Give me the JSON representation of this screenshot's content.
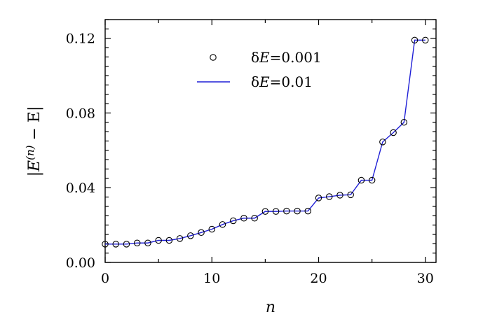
{
  "chart_data": {
    "type": "line",
    "xlabel": "n",
    "ylabel": "|E^{(n)} − E|",
    "ylabel_parts": {
      "left": "|E",
      "sup": "(n)",
      "right": " − E|"
    },
    "xlim": [
      0,
      31
    ],
    "ylim": [
      0,
      0.13
    ],
    "xticks": [
      0,
      10,
      20,
      30
    ],
    "xtick_labels": [
      "0",
      "10",
      "20",
      "30"
    ],
    "yticks": [
      0,
      0.04,
      0.08,
      0.12
    ],
    "ytick_labels": [
      "0.00",
      "0.04",
      "0.08",
      "0.12"
    ],
    "grid": false,
    "legend_position": "top-center",
    "x": [
      0,
      1,
      2,
      3,
      4,
      5,
      6,
      7,
      8,
      9,
      10,
      11,
      12,
      13,
      14,
      15,
      16,
      17,
      18,
      19,
      20,
      21,
      22,
      23,
      24,
      25,
      26,
      27,
      28,
      29,
      30
    ],
    "series": [
      {
        "name": "δE=0.001",
        "legend_label": {
          "prefix": "δ",
          "var": "E",
          "suffix": "=0.001"
        },
        "style": "markers",
        "color": "#000000",
        "values": [
          0.0098,
          0.0098,
          0.0098,
          0.0104,
          0.0104,
          0.0118,
          0.0118,
          0.0128,
          0.0143,
          0.016,
          0.0178,
          0.0203,
          0.0223,
          0.0237,
          0.0237,
          0.0273,
          0.0273,
          0.0275,
          0.0275,
          0.0275,
          0.0345,
          0.0352,
          0.036,
          0.0362,
          0.044,
          0.044,
          0.0645,
          0.0695,
          0.075,
          0.119,
          0.119
        ]
      },
      {
        "name": "δE=0.01",
        "legend_label": {
          "prefix": "δ",
          "var": "E",
          "suffix": "=0.01"
        },
        "style": "line",
        "color": "#1f1fd6",
        "values": [
          0.0098,
          0.0098,
          0.0098,
          0.0104,
          0.0104,
          0.0118,
          0.0118,
          0.0128,
          0.0143,
          0.016,
          0.0178,
          0.0203,
          0.0223,
          0.0237,
          0.0237,
          0.0273,
          0.0273,
          0.0275,
          0.0275,
          0.0275,
          0.0345,
          0.0352,
          0.036,
          0.0362,
          0.044,
          0.044,
          0.0645,
          0.0695,
          0.075,
          0.119,
          0.119
        ]
      }
    ]
  }
}
